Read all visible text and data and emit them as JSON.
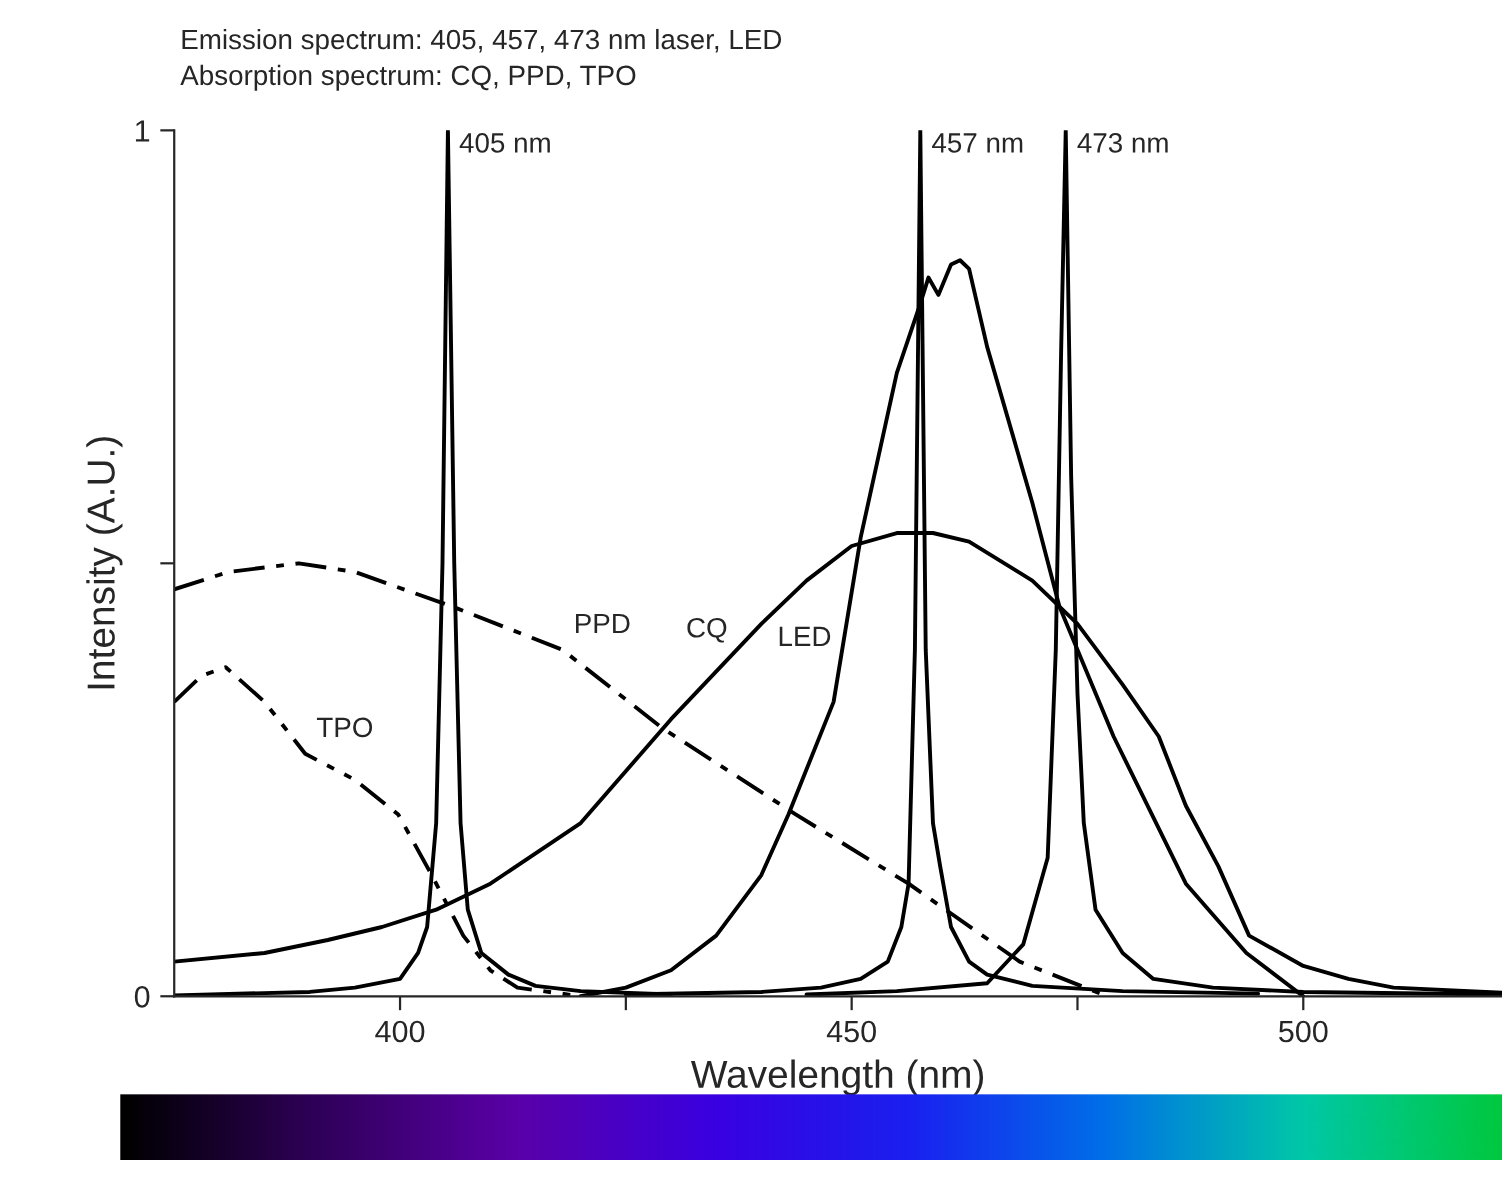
{
  "chart_data": {
    "type": "line",
    "title": "Emission spectrum: 405, 457, 473 nm laser, LED",
    "subtitle": "Absorption spectrum: CQ, PPD, TPO",
    "xlabel": "Wavelength (nm)",
    "ylabel": "Intensity (A.U.)",
    "xlim": [
      375,
      522
    ],
    "xticks": [
      400,
      {
        "value": 425,
        "label": null
      },
      450,
      {
        "value": 475,
        "label": null
      },
      500
    ],
    "ylim": [
      0,
      1
    ],
    "yticks": [
      0,
      {
        "value": 0.5,
        "label": null
      },
      1
    ],
    "grid": false,
    "legend": false,
    "marker": "none",
    "series": [
      {
        "color": "#000000",
        "line_style": "solid",
        "x": [
          375,
          390,
          395,
          400,
          402,
          403,
          404,
          404.7,
          405.3,
          406,
          406.7,
          407.5,
          409,
          412,
          415,
          420,
          430
        ],
        "values": [
          0.001,
          0.005,
          0.01,
          0.02,
          0.05,
          0.08,
          0.2,
          0.5,
          1,
          0.5,
          0.2,
          0.1,
          0.05,
          0.025,
          0.012,
          0.006,
          0.002
        ]
      },
      {
        "color": "#000000",
        "line_style": "solid",
        "x": [
          425,
          440,
          446.6,
          451,
          454,
          455.5,
          456.3,
          457,
          457.6,
          458.2,
          459,
          459.8,
          461,
          463,
          465,
          470,
          480,
          495
        ],
        "values": [
          0.002,
          0.005,
          0.01,
          0.02,
          0.04,
          0.08,
          0.13,
          0.4,
          1,
          0.4,
          0.2,
          0.15,
          0.08,
          0.04,
          0.025,
          0.012,
          0.006,
          0.003
        ]
      },
      {
        "color": "#000000",
        "line_style": "solid",
        "x": [
          445,
          455,
          465,
          469,
          471.7,
          472.6,
          473.2,
          473.7,
          474.3,
          475,
          475.7,
          477,
          480,
          483.4,
          490,
          500,
          522
        ],
        "values": [
          0.002,
          0.006,
          0.015,
          0.06,
          0.16,
          0.4,
          0.75,
          1,
          0.6,
          0.35,
          0.2,
          0.1,
          0.05,
          0.02,
          0.01,
          0.005,
          0.002
        ]
      },
      {
        "color": "#000000",
        "line_style": "solid",
        "x": [
          420,
          425,
          430,
          435,
          440,
          443,
          448,
          451,
          455,
          457.6,
          458.5,
          459.6,
          461,
          462,
          463,
          465,
          470,
          473,
          479,
          487,
          493.7,
          500
        ],
        "values": [
          0,
          0.01,
          0.03,
          0.07,
          0.14,
          0.21,
          0.34,
          0.53,
          0.72,
          0.8,
          0.83,
          0.81,
          0.845,
          0.85,
          0.84,
          0.75,
          0.57,
          0.45,
          0.3,
          0.13,
          0.05,
          0
        ]
      },
      {
        "color": "#000000",
        "line_style": "solid",
        "x": [
          375,
          385,
          392,
          398,
          404,
          410,
          420,
          430,
          440,
          445,
          450,
          455,
          459,
          463,
          470,
          475,
          480,
          484,
          487,
          490.6,
          494,
          500,
          505,
          510,
          522
        ],
        "values": [
          0.04,
          0.05,
          0.065,
          0.08,
          0.1,
          0.13,
          0.2,
          0.32,
          0.43,
          0.48,
          0.52,
          0.535,
          0.535,
          0.525,
          0.48,
          0.43,
          0.36,
          0.3,
          0.22,
          0.15,
          0.07,
          0.035,
          0.02,
          0.01,
          0.004
        ]
      },
      {
        "color": "#000000",
        "line_style": "dashdot",
        "x": [
          375,
          381,
          388.8,
          395,
          405.8,
          418,
          429,
          443.8,
          456.3,
          468.6,
          478.3
        ],
        "values": [
          0.47,
          0.49,
          0.5,
          0.49,
          0.45,
          0.4,
          0.31,
          0.21,
          0.13,
          0.04,
          0
        ]
      },
      {
        "color": "#000000",
        "line_style": "dashdotdot",
        "x": [
          375,
          378,
          380.7,
          385,
          389.5,
          395,
          399.8,
          403.5,
          407,
          410,
          413,
          420
        ],
        "values": [
          0.34,
          0.37,
          0.38,
          0.34,
          0.28,
          0.25,
          0.21,
          0.14,
          0.07,
          0.03,
          0.01,
          0
        ]
      }
    ],
    "annotations": [
      {
        "text": "405 nm",
        "x": 405.3,
        "y": 0.97
      },
      {
        "text": "457 nm",
        "x": 457.6,
        "y": 0.97
      },
      {
        "text": "473 nm",
        "x": 473.7,
        "y": 0.97
      },
      {
        "text": "PPD",
        "x": 418,
        "y": 0.4
      },
      {
        "text": "CQ",
        "x": 437.5,
        "y": 0.41
      },
      {
        "text": "LED",
        "x": 449,
        "y": 0.4
      },
      {
        "text": "TPO",
        "x": 389.5,
        "y": 0.28
      }
    ]
  }
}
